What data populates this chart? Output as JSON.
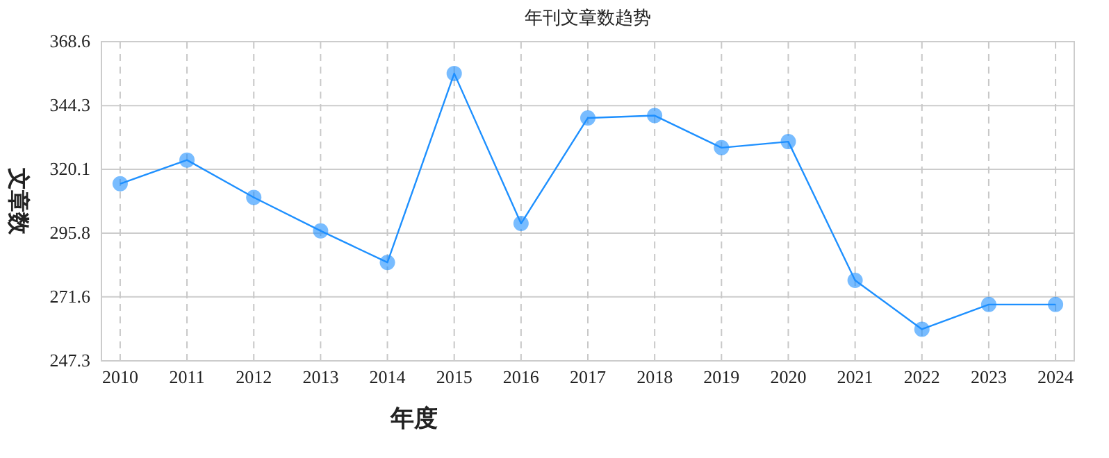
{
  "chart_data": {
    "type": "line",
    "title": "年刊文章数趋势",
    "xlabel": "年度",
    "ylabel": "文章数",
    "categories": [
      "2010",
      "2011",
      "2012",
      "2013",
      "2014",
      "2015",
      "2016",
      "2017",
      "2018",
      "2019",
      "2020",
      "2021",
      "2022",
      "2023",
      "2024"
    ],
    "series": [
      {
        "color": "#1e90ff",
        "values": [
          314.6,
          323.6,
          309.4,
          296.7,
          284.7,
          356.5,
          299.5,
          339.6,
          340.5,
          328.3,
          330.6,
          277.9,
          259.3,
          268.7,
          268.7
        ]
      }
    ],
    "ylim": [
      247.3,
      368.6
    ],
    "yticks": [
      247.3,
      271.6,
      295.8,
      320.1,
      344.3,
      368.6
    ],
    "grid": true,
    "marker": "circle",
    "line_style": "solid"
  }
}
